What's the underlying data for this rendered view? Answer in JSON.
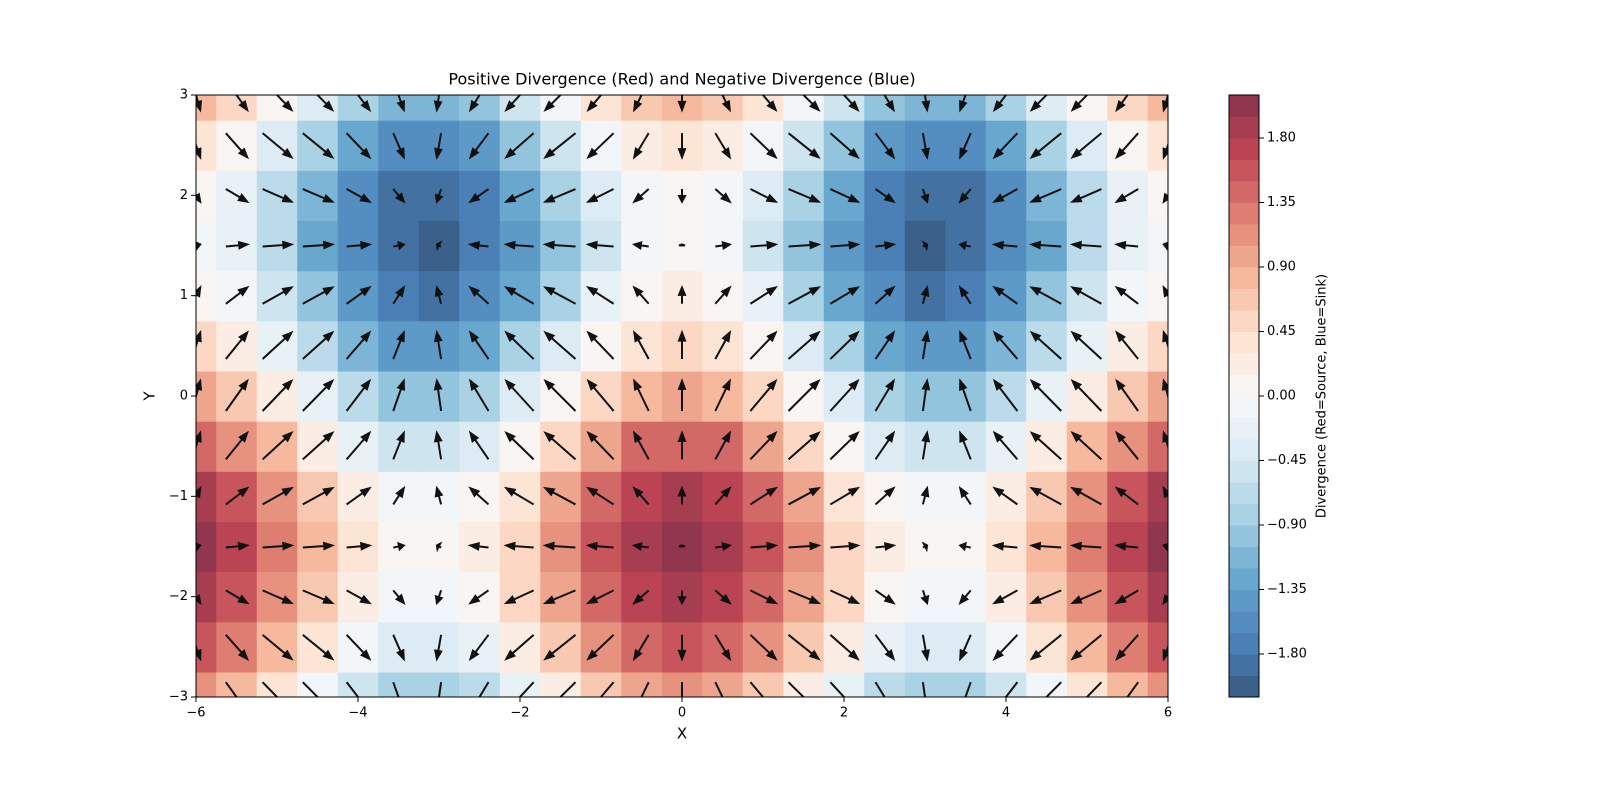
{
  "chart_data": {
    "type": "contour-quiver",
    "title": "Positive Divergence (Red) and Negative Divergence (Blue)",
    "x_label": "X",
    "y_label": "Y",
    "colorbar_label": "Divergence (Red=Source, Blue=Sink)",
    "x": [
      -6,
      -5.5,
      -5,
      -4.5,
      -4,
      -3.5,
      -3,
      -2.5,
      -2,
      -1.5,
      -1,
      -0.5,
      0,
      0.5,
      1,
      1.5,
      2,
      2.5,
      3,
      3.5,
      4,
      4.5,
      5,
      5.5,
      6
    ],
    "y": [
      -3,
      -2.5,
      -2,
      -1.5,
      -1,
      -0.5,
      0,
      0.5,
      1,
      1.5,
      2,
      2.5,
      3
    ],
    "z": [
      [
        1.1,
        0.85,
        0.42,
        -0.07,
        -0.51,
        -0.8,
        -0.85,
        -0.66,
        -0.28,
        0.21,
        0.68,
        1.02,
        1.14,
        1.02,
        0.68,
        0.21,
        -0.28,
        -0.66,
        -0.85,
        -0.8,
        -0.51,
        -0.07,
        0.42,
        0.85,
        1.1
      ],
      [
        1.56,
        1.31,
        0.88,
        0.39,
        -0.05,
        -0.34,
        -0.39,
        -0.2,
        0.18,
        0.67,
        1.14,
        1.48,
        1.6,
        1.48,
        1.14,
        0.67,
        0.18,
        -0.2,
        -0.39,
        -0.34,
        -0.05,
        0.39,
        0.88,
        1.31,
        1.56
      ],
      [
        1.87,
        1.62,
        1.19,
        0.7,
        0.26,
        -0.03,
        -0.08,
        0.11,
        0.49,
        0.98,
        1.45,
        1.79,
        1.91,
        1.79,
        1.45,
        0.98,
        0.49,
        0.11,
        -0.08,
        -0.03,
        0.26,
        0.7,
        1.19,
        1.62,
        1.87
      ],
      [
        1.96,
        1.71,
        1.28,
        0.79,
        0.35,
        0.06,
        0.01,
        0.2,
        0.58,
        1.07,
        1.54,
        1.88,
        2.0,
        1.88,
        1.54,
        1.07,
        0.58,
        0.2,
        0.01,
        0.06,
        0.35,
        0.79,
        1.28,
        1.71,
        1.96
      ],
      [
        1.8,
        1.55,
        1.12,
        0.63,
        0.19,
        -0.1,
        -0.15,
        0.04,
        0.42,
        0.91,
        1.38,
        1.72,
        1.84,
        1.72,
        1.38,
        0.91,
        0.42,
        0.04,
        -0.15,
        -0.1,
        0.19,
        0.63,
        1.12,
        1.55,
        1.8
      ],
      [
        1.44,
        1.19,
        0.76,
        0.27,
        -0.17,
        -0.46,
        -0.51,
        -0.32,
        0.06,
        0.55,
        1.02,
        1.36,
        1.48,
        1.36,
        1.02,
        0.55,
        0.06,
        -0.32,
        -0.51,
        -0.46,
        -0.17,
        0.27,
        0.76,
        1.19,
        1.44
      ],
      [
        0.96,
        0.71,
        0.28,
        -0.21,
        -0.65,
        -0.94,
        -0.99,
        -0.8,
        -0.42,
        0.07,
        0.54,
        0.88,
        1.0,
        0.88,
        0.54,
        0.07,
        -0.42,
        -0.8,
        -0.99,
        -0.94,
        -0.65,
        -0.21,
        0.28,
        0.71,
        0.96
      ],
      [
        0.48,
        0.23,
        -0.2,
        -0.69,
        -1.13,
        -1.42,
        -1.47,
        -1.28,
        -0.9,
        -0.41,
        0.06,
        0.4,
        0.52,
        0.4,
        0.06,
        -0.41,
        -0.9,
        -1.28,
        -1.47,
        -1.42,
        -1.13,
        -0.69,
        -0.2,
        0.23,
        0.48
      ],
      [
        0.12,
        -0.13,
        -0.56,
        -1.05,
        -1.49,
        -1.78,
        -1.83,
        -1.64,
        -1.26,
        -0.77,
        -0.3,
        0.04,
        0.16,
        0.04,
        -0.3,
        -0.77,
        -1.26,
        -1.64,
        -1.83,
        -1.78,
        -1.49,
        -1.05,
        -0.56,
        -0.13,
        0.12
      ],
      [
        -0.04,
        -0.29,
        -0.72,
        -1.21,
        -1.65,
        -1.94,
        -1.99,
        -1.8,
        -1.42,
        -0.93,
        -0.46,
        -0.12,
        0,
        -0.12,
        -0.46,
        -0.93,
        -1.42,
        -1.8,
        -1.99,
        -1.94,
        -1.65,
        -1.21,
        -0.72,
        -0.29,
        -0.04
      ],
      [
        0.05,
        -0.2,
        -0.63,
        -1.12,
        -1.56,
        -1.85,
        -1.9,
        -1.71,
        -1.33,
        -0.84,
        -0.37,
        -0.03,
        0.09,
        -0.03,
        -0.37,
        -0.84,
        -1.33,
        -1.71,
        -1.9,
        -1.85,
        -1.56,
        -1.12,
        -0.63,
        -0.2,
        0.05
      ],
      [
        0.36,
        0.11,
        -0.32,
        -0.81,
        -1.25,
        -1.54,
        -1.59,
        -1.4,
        -1.02,
        -0.53,
        -0.06,
        0.28,
        0.4,
        0.28,
        -0.06,
        -0.53,
        -1.02,
        -1.4,
        -1.59,
        -1.54,
        -1.25,
        -0.81,
        -0.32,
        0.11,
        0.36
      ],
      [
        0.82,
        0.57,
        0.14,
        -0.35,
        -0.79,
        -1.08,
        -1.13,
        -0.94,
        -0.56,
        -0.07,
        0.4,
        0.74,
        0.86,
        0.74,
        0.4,
        -0.07,
        -0.56,
        -0.94,
        -1.13,
        -1.08,
        -0.79,
        -0.35,
        0.14,
        0.57,
        0.82
      ]
    ],
    "quiver": {
      "u": [
        0.28,
        0.71,
        0.96,
        0.98,
        0.76,
        0.35,
        -0.14,
        -0.6,
        -0.91,
        -1.0,
        -0.84,
        -0.48,
        0,
        0.48,
        0.84,
        1.0,
        0.91,
        0.6,
        0.14,
        -0.35,
        -0.76,
        -0.98,
        -0.96,
        -0.71,
        -0.28
      ],
      "v": [
        -0.99,
        -0.8,
        -0.42,
        0.07,
        0.54,
        0.88,
        1,
        0.88,
        0.54,
        0.07,
        -0.42,
        -0.8,
        -0.99
      ],
      "color": "#111111"
    },
    "levels": [
      -2.1,
      -1.95,
      -1.8,
      -1.65,
      -1.5,
      -1.35,
      -1.2,
      -1.05,
      -0.9,
      -0.75,
      -0.6,
      -0.45,
      -0.3,
      -0.15,
      0,
      0.15,
      0.3,
      0.45,
      0.6,
      0.75,
      0.9,
      1.05,
      1.2,
      1.35,
      1.5,
      1.65,
      1.8,
      1.95,
      2.1
    ],
    "colormap": [
      "#053061",
      "#2166ac",
      "#4393c3",
      "#92c5de",
      "#d1e5f0",
      "#f7f7f7",
      "#fddbc7",
      "#f4a582",
      "#d6604d",
      "#b2182b",
      "#67001f"
    ],
    "alpha": 0.8,
    "xlim": [
      -6,
      6
    ],
    "ylim": [
      -3,
      3
    ],
    "xticks": [
      {
        "value": -6,
        "label": "−6"
      },
      {
        "value": -4,
        "label": "−4"
      },
      {
        "value": -2,
        "label": "−2"
      },
      0,
      2,
      4,
      6
    ],
    "yticks": [
      {
        "value": -3,
        "label": "−3"
      },
      {
        "value": -2,
        "label": "−2"
      },
      {
        "value": -1,
        "label": "−1"
      },
      0,
      1,
      2,
      3
    ],
    "cbar_ticks": [
      {
        "value": -1.8,
        "label": "−1.80"
      },
      {
        "value": -1.35,
        "label": "−1.35"
      },
      {
        "value": -0.9,
        "label": "−0.90"
      },
      {
        "value": -0.45,
        "label": "−0.45"
      },
      {
        "value": 0,
        "label": "0.00"
      },
      {
        "value": 0.45,
        "label": "0.45"
      },
      {
        "value": 0.9,
        "label": "0.90"
      },
      {
        "value": 1.35,
        "label": "1.35"
      },
      {
        "value": 1.8,
        "label": "1.80"
      }
    ]
  }
}
